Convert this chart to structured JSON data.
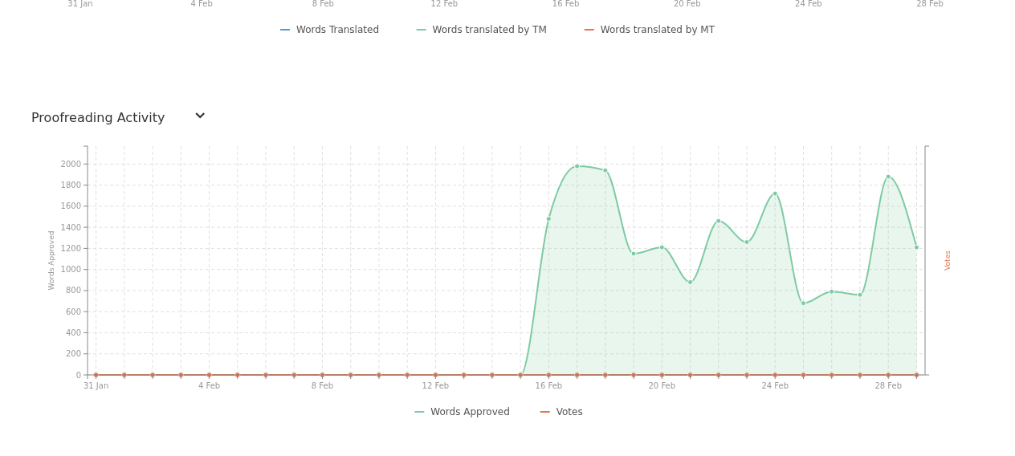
{
  "chart_data": [
    {
      "type": "other",
      "categories": [
        "31 Jan",
        "4 Feb",
        "8 Feb",
        "12 Feb",
        "16 Feb",
        "20 Feb",
        "24 Feb",
        "28 Feb"
      ],
      "legend": "bottom",
      "series": [
        {
          "name": "Words Translated",
          "color": "#4a9fd4",
          "values": [
            null,
            null,
            null,
            null,
            null,
            null,
            null,
            null
          ]
        },
        {
          "name": "Words translated by TM",
          "color": "#7ecba1",
          "values": [
            null,
            null,
            null,
            null,
            null,
            null,
            null,
            null
          ]
        },
        {
          "name": "Words translated by MT",
          "color": "#e8744a",
          "values": [
            null,
            null,
            null,
            null,
            null,
            null,
            null,
            null
          ]
        }
      ]
    },
    {
      "type": "area",
      "title": "Proofreading Activity",
      "ylabel": "Words Approved",
      "y2label": "Votes",
      "categories": [
        "31 Jan",
        null,
        null,
        null,
        "4 Feb",
        null,
        null,
        null,
        "8 Feb",
        null,
        null,
        null,
        "12 Feb",
        null,
        null,
        null,
        "16 Feb",
        null,
        null,
        null,
        "20 Feb",
        null,
        null,
        null,
        "24 Feb",
        null,
        null,
        null,
        "28 Feb",
        null
      ],
      "ylim": [
        0,
        2170
      ],
      "yticks": [
        0,
        200,
        400,
        600,
        800,
        1000,
        1200,
        1400,
        1600,
        1800,
        2000
      ],
      "grid": true,
      "legend": "bottom",
      "marker": "circle",
      "series": [
        {
          "name": "Words Approved",
          "color": "#7ecba1",
          "values": [
            0,
            0,
            0,
            0,
            0,
            0,
            0,
            0,
            0,
            0,
            0,
            0,
            0,
            0,
            0,
            0,
            1480,
            1980,
            1940,
            1150,
            1210,
            880,
            1460,
            1260,
            1720,
            680,
            790,
            760,
            1880,
            1210
          ]
        },
        {
          "name": "Votes",
          "type": "line",
          "color": "#e8744a",
          "values": [
            0,
            0,
            0,
            0,
            0,
            0,
            0,
            0,
            0,
            0,
            0,
            0,
            0,
            0,
            0,
            0,
            0,
            0,
            0,
            0,
            0,
            0,
            0,
            0,
            0,
            0,
            0,
            0,
            0,
            0
          ]
        }
      ]
    }
  ]
}
